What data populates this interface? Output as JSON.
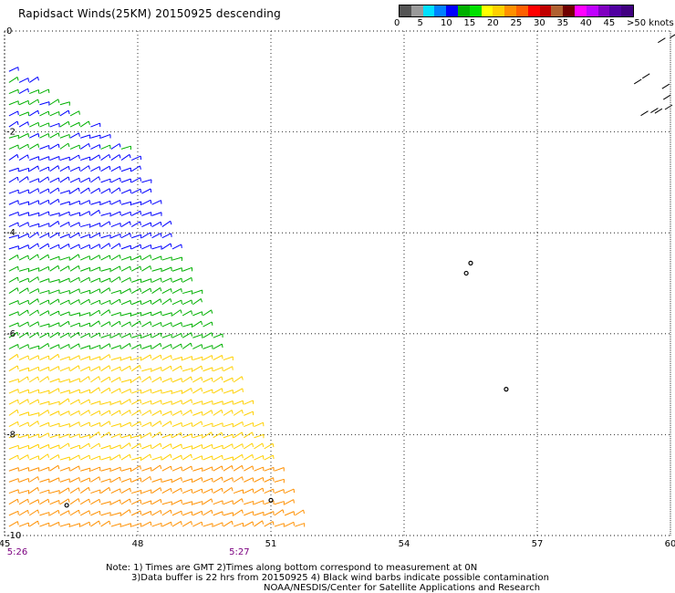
{
  "title": "Rapidsact Winds(25KM) 20150925 descending",
  "colorbar": {
    "colors": [
      "#555555",
      "#9a9a9a",
      "#00e0ff",
      "#0080ff",
      "#0000ff",
      "#00b000",
      "#00e000",
      "#ffff00",
      "#ffd000",
      "#ff9000",
      "#ff6000",
      "#ff0000",
      "#c00000",
      "#b06030",
      "#700000",
      "#ff00ff",
      "#c000ff",
      "#8000c0",
      "#5000a0",
      "#400080"
    ],
    "labels": [
      "0",
      "5",
      "10",
      "15",
      "20",
      "25",
      "30",
      "35",
      "40",
      "45",
      ">50 knots"
    ],
    "label_colors": {
      "black": "#000000",
      "highlight": "#7b0080"
    }
  },
  "chart_data": {
    "type": "wind-barb map",
    "title": "Rapidsact Winds(25KM) 20150925 descending",
    "x_ticks": [
      "45",
      "48",
      "51",
      "54",
      "57",
      "60"
    ],
    "y_ticks": [
      "0",
      "-2",
      "-4",
      "-6",
      "-8",
      "-10"
    ],
    "xlim": [
      45,
      60
    ],
    "ylim": [
      -10,
      0
    ],
    "grid": true,
    "time_labels": [
      {
        "x": 45,
        "text": "5:26"
      },
      {
        "x": 50,
        "text": "5:27"
      }
    ],
    "swath": {
      "description": "descending pass, western edge",
      "corners": [
        [
          45,
          -0.6
        ],
        [
          45,
          -10
        ],
        [
          51.8,
          -10
        ],
        [
          47.9,
          -2.5
        ]
      ]
    },
    "speed_bands": [
      {
        "lat_max": -2.5,
        "lat_min": -4.5,
        "knots": 15,
        "color": "#0000ff"
      },
      {
        "lat_max": -4.5,
        "lat_min": -6.5,
        "knots": 18,
        "color": "#00b000"
      },
      {
        "lat_max": -6.5,
        "lat_min": -8.5,
        "knots": 22,
        "color": "#ffd000"
      },
      {
        "lat_max": -8.5,
        "lat_min": -10,
        "knots": 25,
        "color": "#ff9000"
      }
    ],
    "islands": [
      {
        "name": "",
        "lon": 55.5,
        "lat": -4.6
      },
      {
        "name": "",
        "lon": 55.4,
        "lat": -4.8
      },
      {
        "name": "",
        "lon": 56.3,
        "lat": -7.1
      },
      {
        "name": "",
        "lon": 46.4,
        "lat": -9.4
      },
      {
        "name": "",
        "lon": 51.0,
        "lat": -9.3
      }
    ]
  },
  "notes": [
    "Note: 1) Times are GMT 2)Times along bottom correspond to measurement at 0N",
    "3)Data buffer is 22 hrs from 20150925 4) Black wind barbs indicate possible contamination",
    "NOAA/NESDIS/Center for Satellite Applications and Research"
  ]
}
